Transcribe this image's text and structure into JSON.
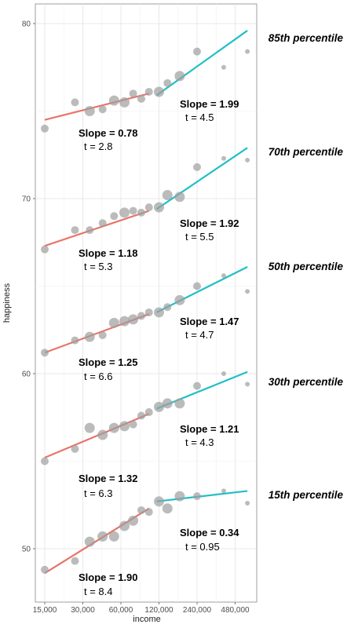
{
  "chart_data": {
    "type": "scatter",
    "title": "",
    "xlabel": "income",
    "ylabel": "happiness",
    "x_scale": "log",
    "xlim": [
      15000,
      600000
    ],
    "ylim": [
      48,
      81
    ],
    "x_ticks": [
      15000,
      30000,
      60000,
      120000,
      240000,
      480000
    ],
    "x_tick_labels": [
      "15,000",
      "30,000",
      "60,000",
      "120,000",
      "240,000",
      "480,000"
    ],
    "y_ticks": [
      50,
      60,
      70,
      80
    ],
    "y_tick_labels": [
      "50",
      "60",
      "70",
      "80"
    ],
    "grid": true,
    "colors": {
      "low_income_line": "#e8746b",
      "high_income_line": "#20bfc6",
      "points": "#9e9e9e"
    },
    "x": [
      15000,
      26000,
      34000,
      43000,
      53000,
      64000,
      75000,
      87000,
      100000,
      120000,
      140000,
      175000,
      240000,
      390000,
      600000
    ],
    "series": [
      {
        "name": "85th percentile",
        "values": [
          74.0,
          75.5,
          75.0,
          75.1,
          75.6,
          75.5,
          76.0,
          75.7,
          76.1,
          76.1,
          76.6,
          77.0,
          78.4,
          77.5,
          78.4
        ],
        "sizes": [
          2,
          2,
          3,
          2,
          3,
          3,
          2,
          2,
          2,
          3,
          2,
          3,
          2,
          1,
          1
        ],
        "slope_low": "Slope = 0.78",
        "t_low": "t = 2.8",
        "slope_high": "Slope = 1.99",
        "t_high": "t = 4.5",
        "line_low": [
          [
            15000,
            74.5
          ],
          [
            100000,
            76.0
          ]
        ],
        "line_high": [
          [
            115000,
            75.9
          ],
          [
            600000,
            79.6
          ]
        ]
      },
      {
        "name": "70th percentile",
        "values": [
          67.1,
          68.2,
          68.2,
          68.6,
          69.0,
          69.2,
          69.3,
          69.2,
          69.5,
          69.5,
          70.2,
          70.1,
          71.8,
          72.3,
          72.2
        ],
        "sizes": [
          2,
          2,
          2,
          2,
          2,
          3,
          2,
          2,
          2,
          3,
          3,
          3,
          2,
          1,
          1
        ],
        "slope_low": "Slope = 1.18",
        "t_low": "t = 5.3",
        "slope_high": "Slope = 1.92",
        "t_high": "t = 5.5",
        "line_low": [
          [
            15000,
            67.3
          ],
          [
            100000,
            69.3
          ]
        ],
        "line_high": [
          [
            115000,
            69.4
          ],
          [
            600000,
            72.9
          ]
        ]
      },
      {
        "name": "50th percentile",
        "values": [
          61.2,
          61.9,
          62.1,
          62.2,
          62.9,
          63.0,
          63.1,
          63.3,
          63.5,
          63.5,
          63.8,
          64.2,
          65.0,
          65.6,
          64.7
        ],
        "sizes": [
          2,
          2,
          3,
          2,
          3,
          3,
          3,
          2,
          2,
          3,
          2,
          3,
          2,
          1,
          1
        ],
        "slope_low": "Slope = 1.25",
        "t_low": "t = 6.6",
        "slope_high": "Slope = 1.47",
        "t_high": "t = 4.7",
        "line_low": [
          [
            15000,
            61.2
          ],
          [
            100000,
            63.4
          ]
        ],
        "line_high": [
          [
            115000,
            63.5
          ],
          [
            600000,
            66.1
          ]
        ]
      },
      {
        "name": "30th percentile",
        "values": [
          55.0,
          55.7,
          56.9,
          56.5,
          56.9,
          57.0,
          57.1,
          57.6,
          57.8,
          58.1,
          58.3,
          58.3,
          59.3,
          60.0,
          59.4
        ],
        "sizes": [
          2,
          2,
          3,
          3,
          3,
          3,
          2,
          2,
          2,
          3,
          3,
          3,
          2,
          1,
          1
        ],
        "slope_low": "Slope = 1.32",
        "t_low": "t = 6.3",
        "slope_high": "Slope = 1.21",
        "t_high": "t = 4.3",
        "line_low": [
          [
            15000,
            55.2
          ],
          [
            100000,
            57.7
          ]
        ],
        "line_high": [
          [
            115000,
            58.0
          ],
          [
            600000,
            60.1
          ]
        ]
      },
      {
        "name": "15th percentile",
        "values": [
          48.8,
          49.3,
          50.4,
          50.7,
          50.7,
          51.3,
          51.6,
          52.2,
          52.1,
          52.7,
          52.3,
          53.0,
          53.0,
          53.3,
          52.6
        ],
        "sizes": [
          2,
          2,
          3,
          3,
          3,
          3,
          3,
          2,
          2,
          3,
          3,
          3,
          2,
          1,
          1
        ],
        "slope_low": "Slope = 1.90",
        "t_low": "t = 8.4",
        "slope_high": "Slope = 0.34",
        "t_high": "t = 0.95",
        "line_low": [
          [
            15000,
            48.6
          ],
          [
            100000,
            52.3
          ]
        ],
        "line_high": [
          [
            115000,
            52.7
          ],
          [
            600000,
            53.3
          ]
        ]
      }
    ]
  }
}
